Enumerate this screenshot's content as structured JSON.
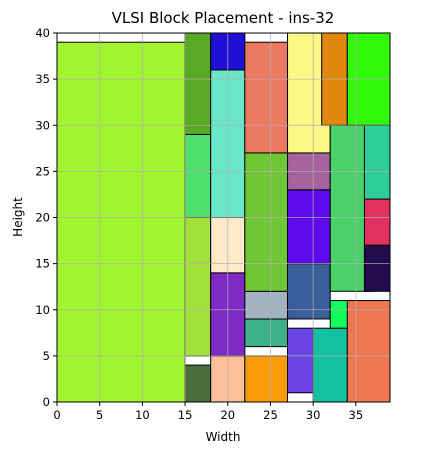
{
  "chart_data": {
    "type": "block-placement",
    "title": "VLSI Block Placement - ins-32",
    "xlabel": "Width",
    "ylabel": "Height",
    "xlim": [
      0,
      39
    ],
    "ylim": [
      0,
      40
    ],
    "xticks": [
      0,
      5,
      10,
      15,
      20,
      25,
      30,
      35
    ],
    "yticks": [
      0,
      5,
      10,
      15,
      20,
      25,
      30,
      35,
      40
    ],
    "grid": true,
    "blocks": [
      {
        "x": 0,
        "y": 0,
        "w": 15,
        "h": 39,
        "color": "#a2f42f"
      },
      {
        "x": 15,
        "y": 0,
        "w": 3,
        "h": 4,
        "color": "#4a6e3e"
      },
      {
        "x": 15,
        "y": 5,
        "w": 3,
        "h": 15,
        "color": "#a2e03a"
      },
      {
        "x": 15,
        "y": 20,
        "w": 3,
        "h": 9,
        "color": "#4ee06a"
      },
      {
        "x": 15,
        "y": 29,
        "w": 3,
        "h": 11,
        "color": "#58aa24"
      },
      {
        "x": 18,
        "y": 0,
        "w": 4,
        "h": 5,
        "color": "#fdbf9b"
      },
      {
        "x": 18,
        "y": 5,
        "w": 4,
        "h": 9,
        "color": "#7f2ac4"
      },
      {
        "x": 18,
        "y": 14,
        "w": 4,
        "h": 6,
        "color": "#fce9c8"
      },
      {
        "x": 18,
        "y": 20,
        "w": 4,
        "h": 16,
        "color": "#6ae6c8"
      },
      {
        "x": 18,
        "y": 36,
        "w": 4,
        "h": 4,
        "color": "#2010d6"
      },
      {
        "x": 22,
        "y": 0,
        "w": 5,
        "h": 5,
        "color": "#fb9a0b"
      },
      {
        "x": 22,
        "y": 6,
        "w": 5,
        "h": 3,
        "color": "#3db089"
      },
      {
        "x": 22,
        "y": 9,
        "w": 5,
        "h": 3,
        "color": "#a2b3c1"
      },
      {
        "x": 22,
        "y": 12,
        "w": 5,
        "h": 15,
        "color": "#6fc735"
      },
      {
        "x": 22,
        "y": 27,
        "w": 5,
        "h": 12,
        "color": "#ec7962"
      },
      {
        "x": 27,
        "y": 1,
        "w": 3,
        "h": 7,
        "color": "#6c45e4"
      },
      {
        "x": 27,
        "y": 9,
        "w": 5,
        "h": 6,
        "color": "#3a5e9a"
      },
      {
        "x": 27,
        "y": 15,
        "w": 5,
        "h": 8,
        "color": "#5c0aec"
      },
      {
        "x": 27,
        "y": 23,
        "w": 5,
        "h": 4,
        "color": "#a5629d"
      },
      {
        "x": 27,
        "y": 27,
        "w": 5,
        "h": 13,
        "color": "#fcf888"
      },
      {
        "x": 30,
        "y": 0,
        "w": 4,
        "h": 8,
        "color": "#13c09f"
      },
      {
        "x": 32,
        "y": 8,
        "w": 3,
        "h": 3,
        "color": "#12fc5c"
      },
      {
        "x": 32,
        "y": 12,
        "w": 5,
        "h": 18,
        "color": "#4bd16a"
      },
      {
        "x": 31,
        "y": 30,
        "w": 3,
        "h": 10,
        "color": "#e0880e"
      },
      {
        "x": 34,
        "y": 0,
        "w": 5,
        "h": 11,
        "color": "#ef7650"
      },
      {
        "x": 36,
        "y": 12,
        "w": 3,
        "h": 5,
        "color": "#230a4d"
      },
      {
        "x": 36,
        "y": 17,
        "w": 3,
        "h": 5,
        "color": "#e1325f"
      },
      {
        "x": 36,
        "y": 22,
        "w": 3,
        "h": 8,
        "color": "#2fcd9a"
      },
      {
        "x": 34,
        "y": 30,
        "w": 5,
        "h": 10,
        "color": "#30fa0a"
      }
    ]
  }
}
